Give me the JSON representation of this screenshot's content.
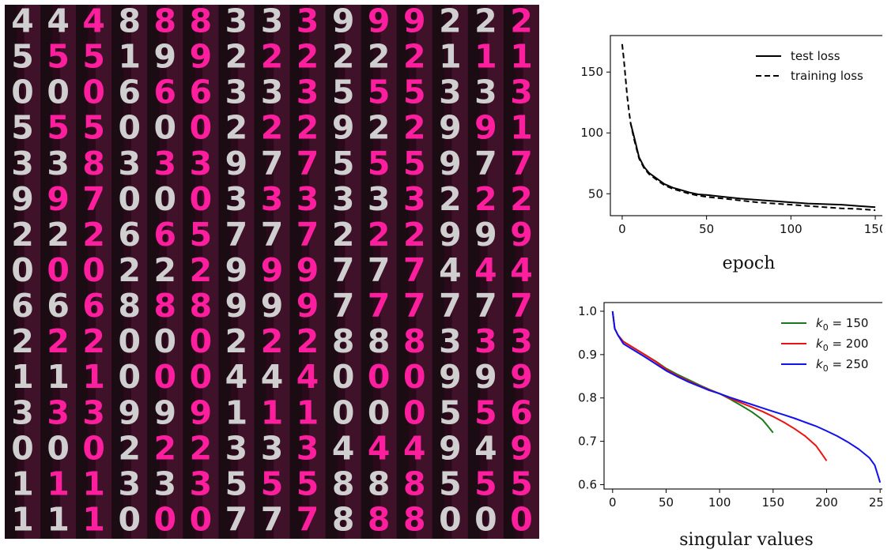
{
  "mosaic": {
    "grid_rows": [
      [
        "4",
        "4",
        "4",
        "8",
        "8",
        "8",
        "3",
        "3",
        "3",
        "9",
        "9",
        "9",
        "2",
        "2",
        "2"
      ],
      [
        "5",
        "5",
        "5",
        "1",
        "9",
        "9",
        "2",
        "2",
        "2",
        "2",
        "2",
        "2",
        "1",
        "1",
        "1"
      ],
      [
        "0",
        "0",
        "0",
        "6",
        "6",
        "6",
        "3",
        "3",
        "3",
        "5",
        "5",
        "5",
        "3",
        "3",
        "3"
      ],
      [
        "5",
        "5",
        "5",
        "0",
        "0",
        "0",
        "2",
        "2",
        "2",
        "9",
        "2",
        "2",
        "9",
        "9",
        "1"
      ],
      [
        "3",
        "3",
        "8",
        "3",
        "3",
        "3",
        "9",
        "7",
        "7",
        "5",
        "5",
        "5",
        "9",
        "7",
        "7"
      ],
      [
        "9",
        "9",
        "7",
        "0",
        "0",
        "0",
        "3",
        "3",
        "3",
        "3",
        "3",
        "3",
        "2",
        "2",
        "2"
      ],
      [
        "2",
        "2",
        "2",
        "6",
        "6",
        "5",
        "7",
        "7",
        "7",
        "2",
        "2",
        "2",
        "9",
        "9",
        "9"
      ],
      [
        "0",
        "0",
        "0",
        "2",
        "2",
        "2",
        "9",
        "9",
        "9",
        "7",
        "7",
        "7",
        "4",
        "4",
        "4"
      ],
      [
        "6",
        "6",
        "6",
        "8",
        "8",
        "8",
        "9",
        "9",
        "9",
        "7",
        "7",
        "7",
        "7",
        "7",
        "7"
      ],
      [
        "2",
        "2",
        "2",
        "0",
        "0",
        "0",
        "2",
        "2",
        "2",
        "8",
        "8",
        "8",
        "3",
        "3",
        "3"
      ],
      [
        "1",
        "1",
        "1",
        "0",
        "0",
        "0",
        "4",
        "4",
        "4",
        "0",
        "0",
        "0",
        "9",
        "9",
        "9"
      ],
      [
        "3",
        "3",
        "3",
        "9",
        "9",
        "9",
        "1",
        "1",
        "1",
        "0",
        "0",
        "0",
        "5",
        "5",
        "6"
      ],
      [
        "0",
        "0",
        "0",
        "2",
        "2",
        "2",
        "3",
        "3",
        "3",
        "4",
        "4",
        "4",
        "9",
        "4",
        "9"
      ],
      [
        "1",
        "1",
        "1",
        "3",
        "3",
        "3",
        "5",
        "5",
        "5",
        "8",
        "8",
        "8",
        "5",
        "5",
        "5"
      ],
      [
        "1",
        "1",
        "1",
        "0",
        "0",
        "0",
        "7",
        "7",
        "7",
        "8",
        "8",
        "8",
        "0",
        "0",
        "0"
      ]
    ],
    "colors": {
      "background": "#2a0a1a",
      "light_strip": "#4a1530",
      "gray_digit": "#cfcfcf",
      "pink_digit": "#ff1f9e",
      "dark_strip": "#0e0e0e"
    }
  },
  "chart_data": [
    {
      "type": "line",
      "title": "",
      "xlabel": "epoch",
      "ylabel": "",
      "xlim": [
        -7,
        157
      ],
      "ylim": [
        32,
        180
      ],
      "xticks": [
        0,
        50,
        100,
        150
      ],
      "yticks": [
        50,
        100,
        150
      ],
      "legend_position": "top-right",
      "series": [
        {
          "name": "test loss",
          "style": "solid",
          "color": "#000000",
          "x": [
            5,
            7,
            10,
            13,
            16,
            20,
            25,
            30,
            35,
            40,
            45,
            50,
            60,
            70,
            80,
            90,
            100,
            110,
            120,
            130,
            140,
            150
          ],
          "y": [
            108,
            97,
            80,
            72,
            67,
            63,
            58,
            55,
            53,
            51,
            49.5,
            49,
            47.5,
            46,
            45,
            44,
            43,
            42,
            41.5,
            41,
            40,
            39
          ]
        },
        {
          "name": "training loss",
          "style": "dashed",
          "color": "#000000",
          "x": [
            0,
            1,
            2,
            3,
            4,
            5,
            7,
            10,
            13,
            16,
            20,
            25,
            30,
            35,
            40,
            45,
            50,
            60,
            70,
            80,
            90,
            100,
            110,
            120,
            130,
            140,
            150
          ],
          "y": [
            173,
            160,
            145,
            130,
            118,
            108,
            95,
            79,
            71,
            66,
            62,
            57,
            54,
            52,
            50,
            48.5,
            47.5,
            46,
            44.5,
            43,
            42,
            41,
            40,
            39,
            38,
            37.5,
            36.5
          ]
        }
      ]
    },
    {
      "type": "line",
      "title": "",
      "xlabel": "singular values",
      "ylabel": "",
      "xlim": [
        -8,
        258
      ],
      "ylim": [
        0.59,
        1.02
      ],
      "xticks": [
        0,
        50,
        100,
        150,
        200,
        250
      ],
      "yticks": [
        0.6,
        0.7,
        0.8,
        0.9,
        1.0
      ],
      "legend_position": "top-right",
      "series": [
        {
          "name": "k0 = 150",
          "legend_base": "k",
          "legend_sub": "0",
          "legend_rest": " = 150",
          "color": "#1a7a1a",
          "x": [
            0,
            2,
            5,
            10,
            20,
            30,
            40,
            50,
            60,
            70,
            80,
            90,
            100,
            110,
            120,
            130,
            140,
            145,
            150
          ],
          "y": [
            1.0,
            0.96,
            0.945,
            0.93,
            0.915,
            0.9,
            0.885,
            0.868,
            0.855,
            0.843,
            0.831,
            0.82,
            0.81,
            0.797,
            0.783,
            0.768,
            0.75,
            0.735,
            0.72
          ]
        },
        {
          "name": "k0 = 200",
          "legend_base": "k",
          "legend_sub": "0",
          "legend_rest": " = 200",
          "color": "#ee1111",
          "x": [
            0,
            2,
            5,
            10,
            20,
            30,
            40,
            50,
            60,
            70,
            80,
            90,
            100,
            110,
            120,
            130,
            140,
            150,
            160,
            170,
            180,
            190,
            195,
            200
          ],
          "y": [
            1.0,
            0.96,
            0.945,
            0.93,
            0.915,
            0.9,
            0.884,
            0.866,
            0.852,
            0.84,
            0.829,
            0.819,
            0.81,
            0.799,
            0.789,
            0.779,
            0.769,
            0.757,
            0.744,
            0.729,
            0.712,
            0.69,
            0.673,
            0.655
          ]
        },
        {
          "name": "k0 = 250",
          "legend_base": "k",
          "legend_sub": "0",
          "legend_rest": " = 250",
          "color": "#1111ee",
          "x": [
            0,
            2,
            5,
            10,
            20,
            30,
            40,
            50,
            60,
            70,
            80,
            90,
            100,
            110,
            120,
            130,
            140,
            150,
            160,
            170,
            180,
            190,
            200,
            210,
            220,
            230,
            240,
            245,
            250
          ],
          "y": [
            1.0,
            0.96,
            0.945,
            0.925,
            0.91,
            0.895,
            0.879,
            0.863,
            0.85,
            0.838,
            0.828,
            0.818,
            0.81,
            0.801,
            0.793,
            0.785,
            0.777,
            0.769,
            0.761,
            0.753,
            0.744,
            0.735,
            0.724,
            0.712,
            0.698,
            0.682,
            0.662,
            0.645,
            0.605
          ]
        }
      ]
    }
  ]
}
